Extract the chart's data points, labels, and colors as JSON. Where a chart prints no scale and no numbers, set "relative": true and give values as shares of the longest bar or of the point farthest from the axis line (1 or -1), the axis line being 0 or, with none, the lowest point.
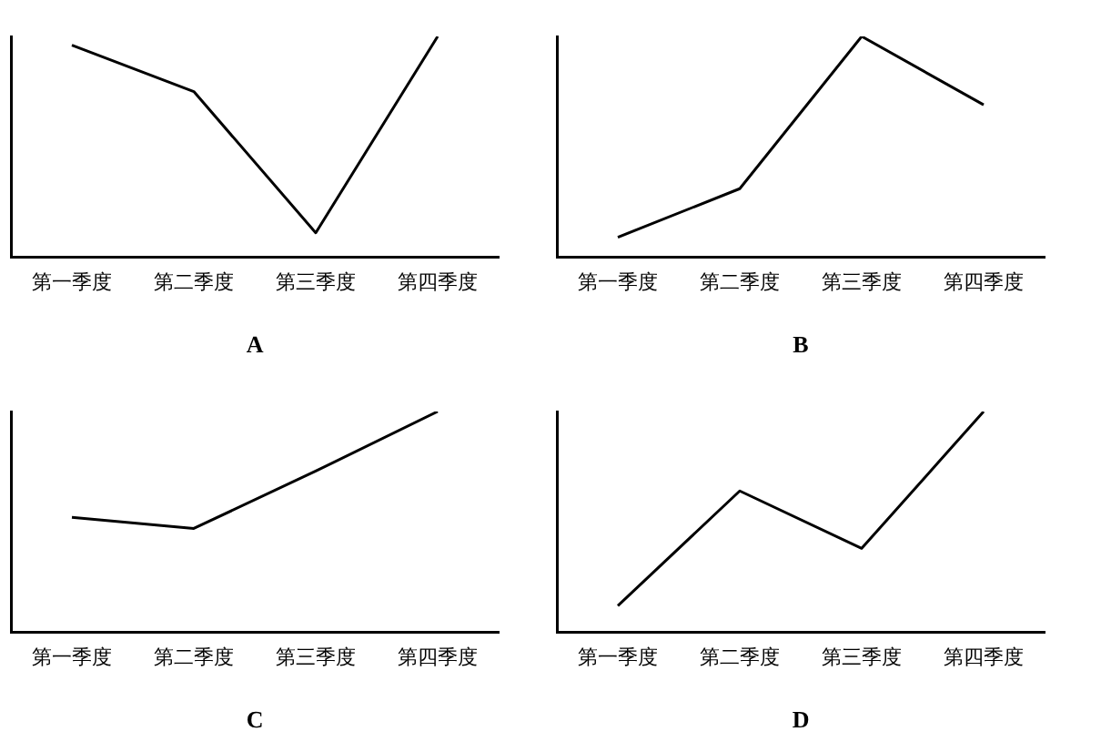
{
  "chart_data": [
    {
      "type": "line",
      "xlabel": "A",
      "categories": [
        "第一季度",
        "第二季度",
        "第三季度",
        "第四季度"
      ],
      "relative": true,
      "grid": false,
      "legend": false,
      "marker": "none",
      "series": [
        {
          "color": "#000000",
          "values": [
            0.96,
            0.75,
            0.11,
            1
          ]
        }
      ]
    },
    {
      "type": "line",
      "xlabel": "B",
      "categories": [
        "第一季度",
        "第二季度",
        "第三季度",
        "第四季度"
      ],
      "relative": true,
      "grid": false,
      "legend": false,
      "marker": "none",
      "series": [
        {
          "color": "#000000",
          "values": [
            0.09,
            0.31,
            1,
            0.69
          ]
        }
      ]
    },
    {
      "type": "line",
      "xlabel": "C",
      "categories": [
        "第一季度",
        "第二季度",
        "第三季度",
        "第四季度"
      ],
      "relative": true,
      "grid": false,
      "legend": false,
      "marker": "none",
      "series": [
        {
          "color": "#000000",
          "values": [
            0.52,
            0.47,
            0.73,
            1
          ]
        }
      ]
    },
    {
      "type": "line",
      "xlabel": "D",
      "categories": [
        "第一季度",
        "第二季度",
        "第三季度",
        "第四季度"
      ],
      "relative": true,
      "grid": false,
      "legend": false,
      "marker": "none",
      "series": [
        {
          "color": "#000000",
          "values": [
            0.12,
            0.64,
            0.38,
            1
          ]
        }
      ]
    }
  ]
}
